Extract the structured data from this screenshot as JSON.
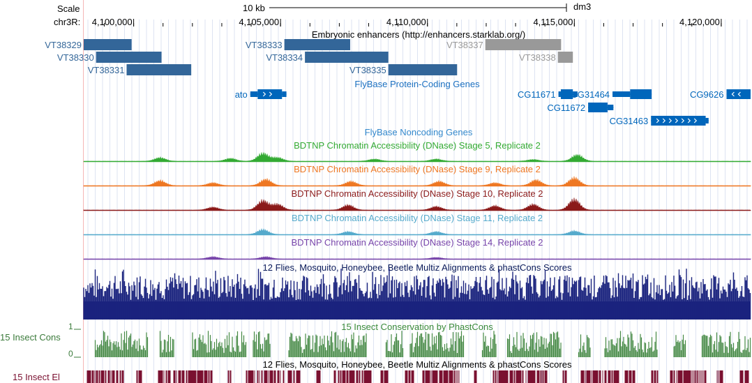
{
  "scale": {
    "label": "Scale",
    "bar_label": "10 kb",
    "assembly": "dm3"
  },
  "ruler": {
    "chrom_label": "chr3R:",
    "ticks": [
      "4,100,000",
      "4,105,000",
      "4,110,000",
      "4,115,000",
      "4,120,000"
    ]
  },
  "view": {
    "start_bp": 4098300,
    "end_bp": 4121000
  },
  "tracks": {
    "enhancers": {
      "title": "Embryonic enhancers (http://enhancers.starklab.org/)",
      "items": [
        {
          "name": "VT38329",
          "start": 4098300,
          "end": 4099930,
          "row": 0,
          "color": "#336699",
          "label_color": "#336699"
        },
        {
          "name": "VT38330",
          "start": 4098720,
          "end": 4100950,
          "row": 1,
          "color": "#336699",
          "label_color": "#336699"
        },
        {
          "name": "VT38331",
          "start": 4099760,
          "end": 4101960,
          "row": 2,
          "color": "#336699",
          "label_color": "#336699"
        },
        {
          "name": "VT38333",
          "start": 4105130,
          "end": 4107370,
          "row": 0,
          "color": "#336699",
          "label_color": "#336699"
        },
        {
          "name": "VT38334",
          "start": 4105830,
          "end": 4108670,
          "row": 1,
          "color": "#336699",
          "label_color": "#336699"
        },
        {
          "name": "VT38335",
          "start": 4108670,
          "end": 4111010,
          "row": 2,
          "color": "#336699",
          "label_color": "#336699"
        },
        {
          "name": "VT38337",
          "start": 4111970,
          "end": 4114550,
          "row": 0,
          "color": "#999999",
          "label_color": "#999999"
        },
        {
          "name": "VT38338",
          "start": 4114440,
          "end": 4114950,
          "row": 1,
          "color": "#999999",
          "label_color": "#999999"
        }
      ]
    },
    "genes": {
      "title": "FlyBase Protein-Coding Genes",
      "color": "#0066bb",
      "items": [
        {
          "name": "ato",
          "start": 4103970,
          "end": 4105200,
          "row": 0,
          "label_side": "left",
          "strand": "+",
          "thin_left": 250,
          "thin_right": 150
        },
        {
          "name": "CG11671",
          "start": 4114460,
          "end": 4115110,
          "row": 0,
          "label_side": "left",
          "strand": "",
          "thin_left": 80,
          "thin_right": 160
        },
        {
          "name": "CG11672",
          "start": 4115470,
          "end": 4116330,
          "row": 1,
          "label_side": "left",
          "strand": "",
          "thin_left": 0,
          "thin_right": 200
        },
        {
          "name": "CG31464",
          "start": 4116300,
          "end": 4117630,
          "row": 0,
          "label_side": "left",
          "strand": "",
          "thin_left": 600,
          "thin_right": 0
        },
        {
          "name": "CG9626",
          "start": 4120180,
          "end": 4121000,
          "row": 0,
          "label_side": "left",
          "strand": "-",
          "thin_left": 0,
          "thin_right": 0
        },
        {
          "name": "CG31463",
          "start": 4117610,
          "end": 4119570,
          "row": 2,
          "label_side": "left",
          "strand": "+",
          "thin_left": 0,
          "thin_right": 100
        }
      ]
    },
    "noncoding": {
      "title": "FlyBase Noncoding Genes"
    },
    "dnase": [
      {
        "title": "BDTNP Chromatin Accessibility (DNase) Stage 5, Replicate 2",
        "color": "#33aa33",
        "peaks": [
          [
            4100900,
            0.25
          ],
          [
            4103300,
            0.2
          ],
          [
            4104400,
            0.55
          ],
          [
            4104900,
            0.25
          ],
          [
            4108200,
            0.15
          ],
          [
            4110300,
            0.15
          ],
          [
            4113600,
            0.12
          ],
          [
            4115100,
            0.45
          ]
        ]
      },
      {
        "title": "BDTNP Chromatin Accessibility (DNase) Stage 9, Replicate 2",
        "color": "#ee7722",
        "peaks": [
          [
            4100900,
            0.35
          ],
          [
            4102700,
            0.2
          ],
          [
            4104500,
            0.45
          ],
          [
            4107400,
            0.3
          ],
          [
            4110400,
            0.3
          ],
          [
            4112300,
            0.2
          ],
          [
            4113700,
            0.4
          ],
          [
            4115000,
            0.55
          ]
        ]
      },
      {
        "title": "BDTNP Chromatin Accessibility (DNase) Stage 10, Replicate 2",
        "color": "#8b1a1a",
        "peaks": [
          [
            4102700,
            0.2
          ],
          [
            4104400,
            0.65
          ],
          [
            4104900,
            0.4
          ],
          [
            4107300,
            0.35
          ],
          [
            4110300,
            0.25
          ],
          [
            4112300,
            0.3
          ],
          [
            4113600,
            0.4
          ],
          [
            4115000,
            0.75
          ]
        ]
      },
      {
        "title": "BDTNP Chromatin Accessibility (DNase) Stage 11, Replicate 2",
        "color": "#55aacc",
        "peaks": [
          [
            4104400,
            0.35
          ],
          [
            4107300,
            0.2
          ],
          [
            4110300,
            0.2
          ],
          [
            4115000,
            0.25
          ]
        ]
      },
      {
        "title": "BDTNP Chromatin Accessibility (DNase) Stage 14, Replicate 2",
        "color": "#7744aa",
        "peaks": [
          [
            4102700,
            0.15
          ],
          [
            4104500,
            0.15
          ],
          [
            4110300,
            0.1
          ]
        ]
      }
    ],
    "multiz": {
      "title": "12 Flies, Mosquito, Honeybee, Beetle Multiz Alignments & phastCons Scores",
      "color": "#1a237e"
    },
    "phastcons": {
      "title": "15 Insect Conservation by PhastCons",
      "side_label": "15 Insect Cons",
      "y_max": "1",
      "y_min": "0",
      "color": "#448844"
    },
    "elements": {
      "title": "12 Flies, Mosquito, Honeybee, Beetle Multiz Alignments & phastCons Scores",
      "side_label": "15 Insect El",
      "color": "#7a1030"
    }
  }
}
